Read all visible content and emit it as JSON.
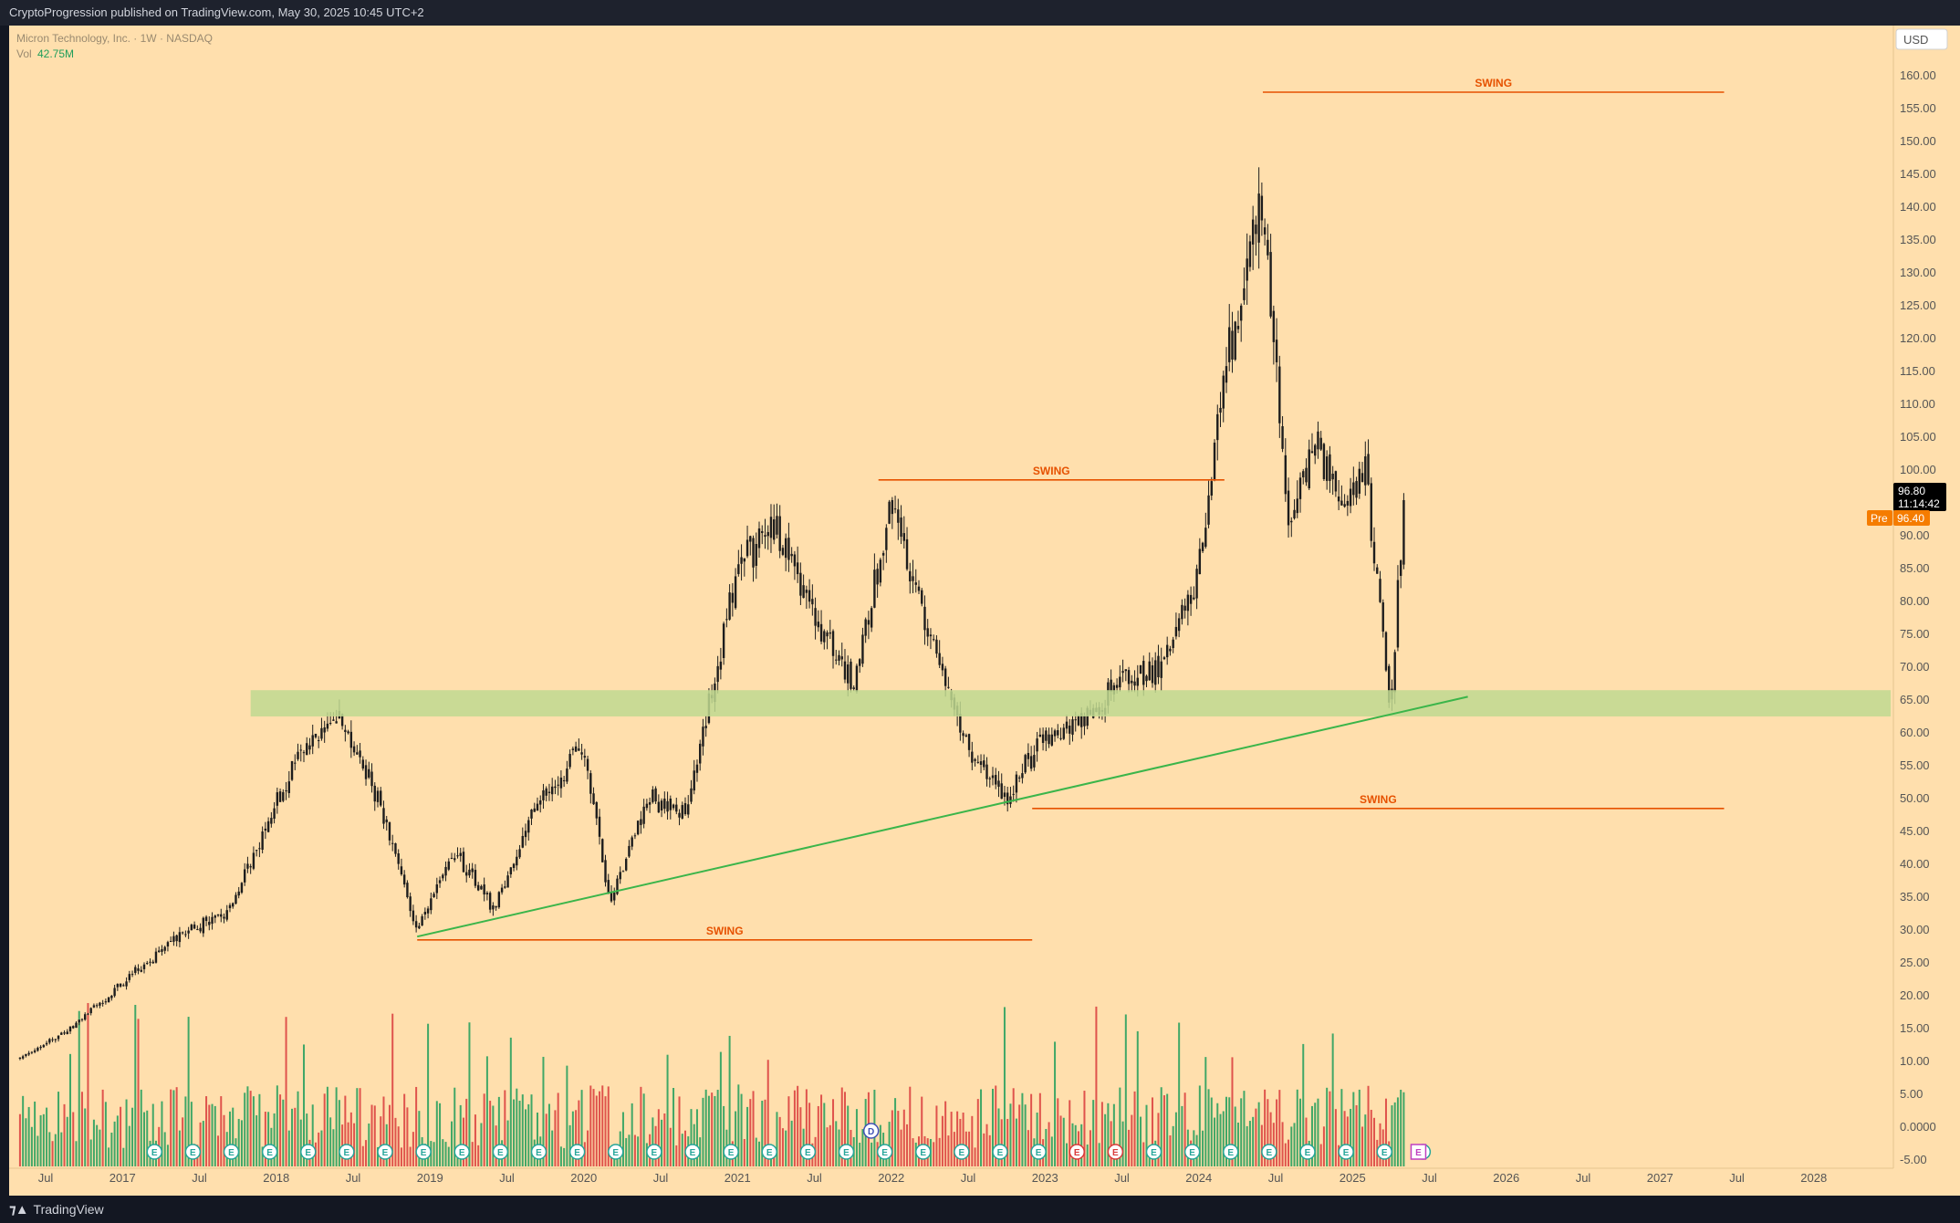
{
  "header": {
    "published": "CryptoProgression published on TradingView.com, May 30, 2025 10:45 UTC+2"
  },
  "footer": {
    "brand": "TradingView"
  },
  "legend": {
    "symbol": "Micron Technology, Inc. · 1W · NASDAQ",
    "vol_label": "Vol",
    "vol_value": "42.75M"
  },
  "price_axis": {
    "currency": "USD"
  },
  "price_badges": {
    "last_price": "96.80",
    "countdown": "11:14:42",
    "pre_label": "Pre",
    "pre_price": "96.40"
  },
  "colors": {
    "background": "#ffdfad",
    "up": "#1f9e5a",
    "down": "#d93b3b",
    "swing_line": "#e65100",
    "trendline": "#3bb54a",
    "zone": "#bfd990",
    "earnings_marker": "#26a69a",
    "dividend_marker": "#3f51b5"
  },
  "chart_data": {
    "type": "candlestick",
    "title": "Micron Technology, Inc. · 1W · NASDAQ",
    "ylim": [
      -5,
      165
    ],
    "y_ticks": [
      "160.00",
      "155.00",
      "150.00",
      "145.00",
      "140.00",
      "135.00",
      "130.00",
      "125.00",
      "120.00",
      "115.00",
      "110.00",
      "105.00",
      "100.00",
      "95.00",
      "90.00",
      "85.00",
      "80.00",
      "75.00",
      "70.00",
      "65.00",
      "60.00",
      "55.00",
      "50.00",
      "45.00",
      "40.00",
      "35.00",
      "30.00",
      "25.00",
      "20.00",
      "15.00",
      "10.00",
      "5.00",
      "0.0000",
      "-5.00"
    ],
    "x_ticks": [
      "Jul",
      "2017",
      "Jul",
      "2018",
      "Jul",
      "2019",
      "Jul",
      "2020",
      "Jul",
      "2021",
      "Jul",
      "2022",
      "Jul",
      "2023",
      "Jul",
      "2024",
      "Jul",
      "2025",
      "Jul",
      "2026",
      "Jul",
      "2027",
      "Jul",
      "2028"
    ],
    "price_path": [
      {
        "date": "2016-05",
        "price": 10.5
      },
      {
        "date": "2016-09",
        "price": 15
      },
      {
        "date": "2017-01",
        "price": 22
      },
      {
        "date": "2017-06",
        "price": 30
      },
      {
        "date": "2017-09",
        "price": 32
      },
      {
        "date": "2017-12",
        "price": 45
      },
      {
        "date": "2018-03",
        "price": 58
      },
      {
        "date": "2018-06",
        "price": 62
      },
      {
        "date": "2018-09",
        "price": 50
      },
      {
        "date": "2018-12",
        "price": 30
      },
      {
        "date": "2019-03",
        "price": 42
      },
      {
        "date": "2019-06",
        "price": 33
      },
      {
        "date": "2019-09",
        "price": 48
      },
      {
        "date": "2020-01",
        "price": 58
      },
      {
        "date": "2020-03",
        "price": 34
      },
      {
        "date": "2020-06",
        "price": 50
      },
      {
        "date": "2020-09",
        "price": 48
      },
      {
        "date": "2021-01",
        "price": 85
      },
      {
        "date": "2021-04",
        "price": 92
      },
      {
        "date": "2021-07",
        "price": 78
      },
      {
        "date": "2021-10",
        "price": 68
      },
      {
        "date": "2022-01",
        "price": 94
      },
      {
        "date": "2022-04",
        "price": 75
      },
      {
        "date": "2022-07",
        "price": 58
      },
      {
        "date": "2022-10",
        "price": 50
      },
      {
        "date": "2023-01",
        "price": 60
      },
      {
        "date": "2023-04",
        "price": 62
      },
      {
        "date": "2023-07",
        "price": 68
      },
      {
        "date": "2023-10",
        "price": 70
      },
      {
        "date": "2024-01",
        "price": 85
      },
      {
        "date": "2024-03",
        "price": 115
      },
      {
        "date": "2024-06",
        "price": 142
      },
      {
        "date": "2024-08",
        "price": 90
      },
      {
        "date": "2024-10",
        "price": 105
      },
      {
        "date": "2024-12",
        "price": 95
      },
      {
        "date": "2025-02",
        "price": 100
      },
      {
        "date": "2025-04",
        "price": 63
      },
      {
        "date": "2025-05",
        "price": 96.8
      }
    ],
    "annotations": {
      "swing_levels": [
        {
          "label": "SWING",
          "price": 157.5,
          "from": "2024-06",
          "to": "2027-06"
        },
        {
          "label": "SWING",
          "price": 98.5,
          "from": "2021-12",
          "to": "2024-03"
        },
        {
          "label": "SWING",
          "price": 48.5,
          "from": "2022-12",
          "to": "2027-06"
        },
        {
          "label": "SWING",
          "price": 28.5,
          "from": "2018-12",
          "to": "2022-12"
        }
      ],
      "support_zone": {
        "from_price": 62.5,
        "to_price": 66.5,
        "start": "2017-11"
      },
      "trendline": {
        "from": {
          "date": "2018-12",
          "price": 29
        },
        "to": {
          "date": "2025-10",
          "price": 65.5
        }
      }
    },
    "volume": {
      "label": "Vol",
      "last": "42.75M"
    },
    "events": {
      "earnings_marker": "E",
      "dividend_marker": "D"
    }
  }
}
